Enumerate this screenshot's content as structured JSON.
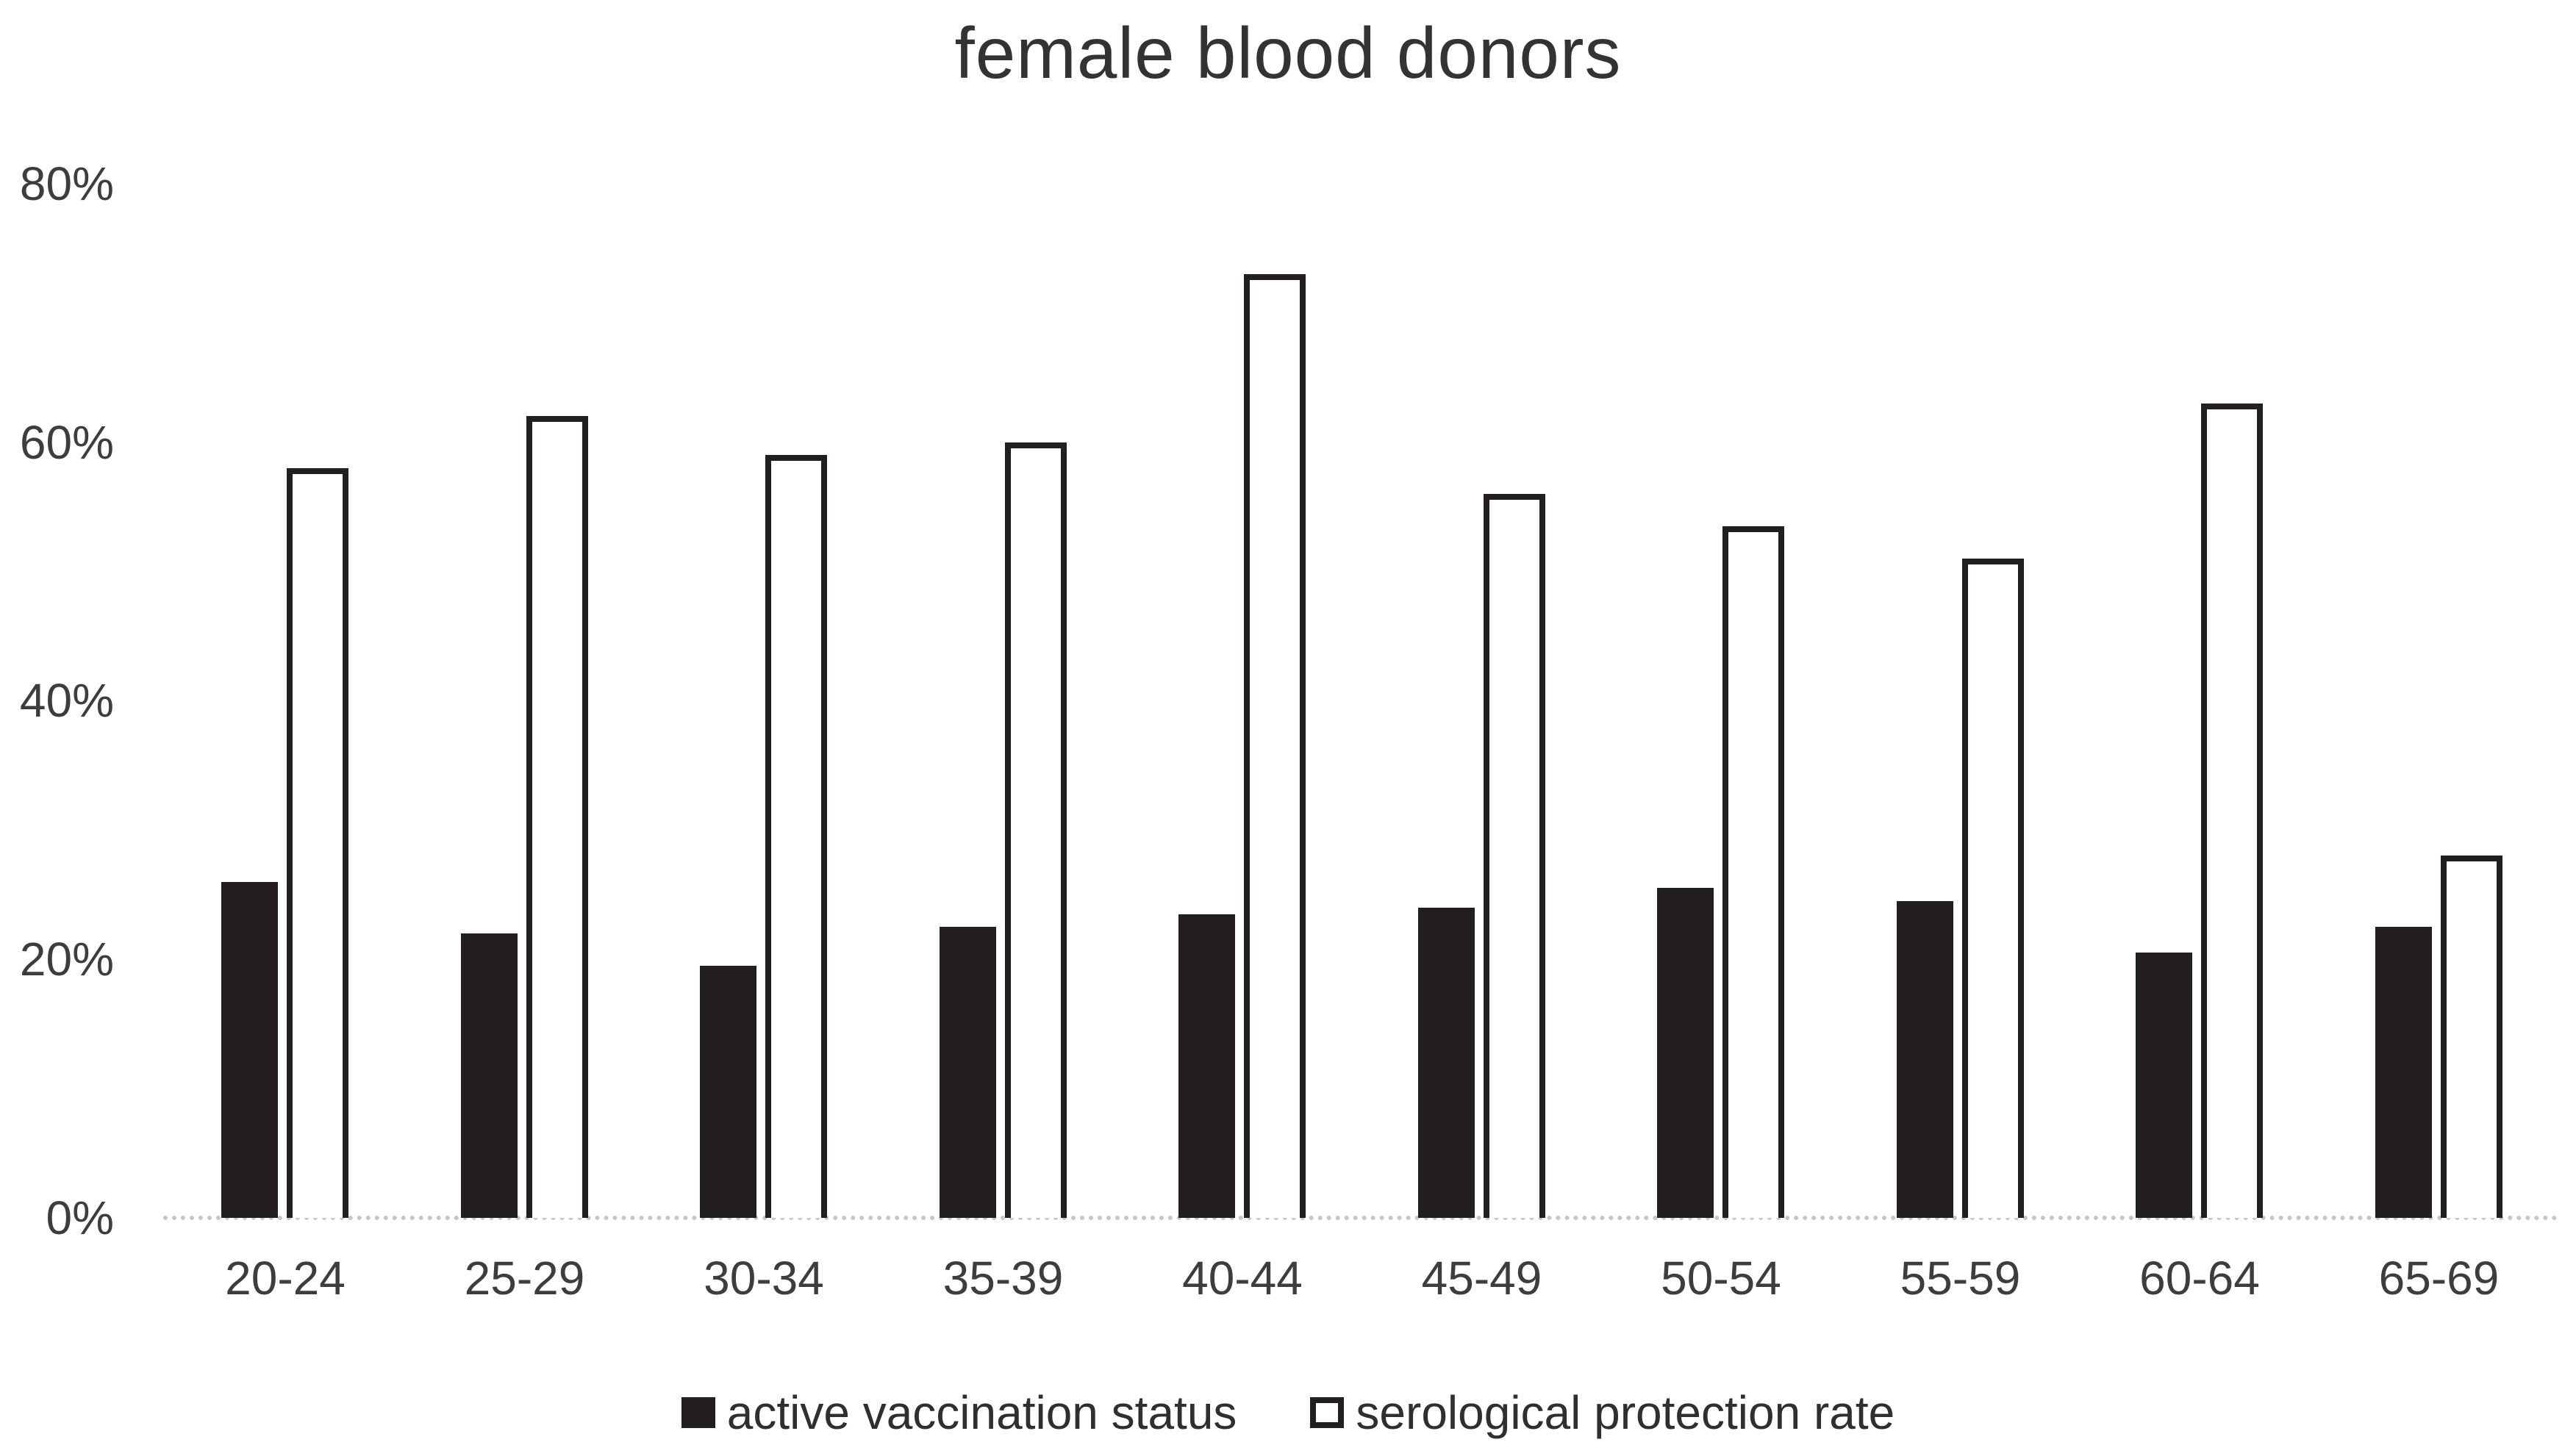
{
  "chart_data": {
    "type": "bar",
    "title": "female blood donors",
    "categories": [
      "20-24",
      "25-29",
      "30-34",
      "35-39",
      "40-44",
      "45-49",
      "50-54",
      "55-59",
      "60-64",
      "65-69"
    ],
    "series": [
      {
        "name": "active vaccination status",
        "style": "filled",
        "color": "#231f20",
        "values": [
          26,
          22,
          19.5,
          22.5,
          23.5,
          24,
          25.5,
          24.5,
          20.5,
          22.5
        ]
      },
      {
        "name": "serological protection rate",
        "style": "outlined",
        "color": "#231f20",
        "fill": "#ffffff",
        "values": [
          58,
          62,
          59,
          60,
          73,
          56,
          53.5,
          51,
          63,
          28
        ]
      }
    ],
    "y_axis": {
      "ticks": [
        "0%",
        "20%",
        "40%",
        "60%",
        "80%"
      ],
      "tick_values": [
        0,
        20,
        40,
        60,
        80
      ],
      "ylim": [
        0,
        80
      ]
    },
    "xlabel": "",
    "ylabel": "",
    "grid": "off",
    "legend_position": "bottom",
    "colors": {
      "bar_black": "#231f20",
      "bar_white_fill": "#ffffff",
      "axis_line": "#c6c6c6",
      "text": "#3d3d3d"
    }
  }
}
